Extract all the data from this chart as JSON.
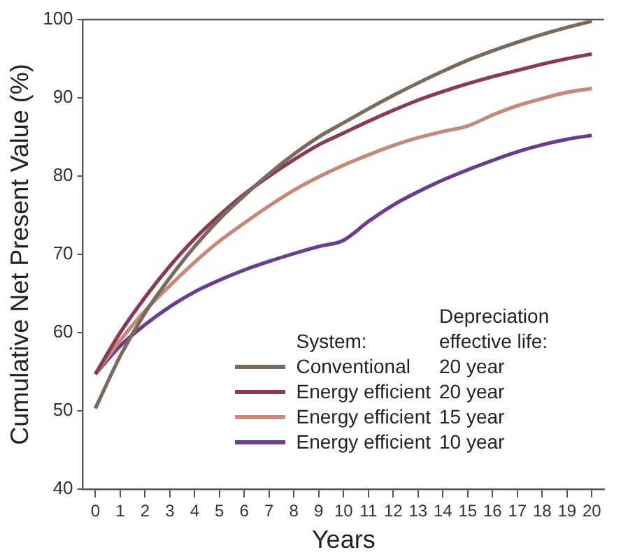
{
  "chart_data": {
    "type": "line",
    "xlabel": "Years",
    "ylabel": "Cumulative Net Present Value (%)",
    "legend_title": "System:",
    "legend": "bottom right",
    "grid": false,
    "marker": "none",
    "line_style": "solid",
    "x": [
      0,
      1,
      2,
      3,
      4,
      5,
      6,
      7,
      8,
      9,
      10,
      11,
      12,
      13,
      14,
      15,
      16,
      17,
      18,
      19,
      20
    ],
    "xlim": [
      -0.5,
      20.5
    ],
    "xticks": [
      0,
      1,
      2,
      3,
      4,
      5,
      6,
      7,
      8,
      9,
      10,
      11,
      12,
      13,
      14,
      15,
      16,
      17,
      18,
      19,
      20
    ],
    "ylim": [
      40,
      100
    ],
    "yticks": [
      40,
      50,
      60,
      70,
      80,
      90,
      100
    ],
    "annotations": [
      "Depreciation effective life:",
      "20 year",
      "20 year",
      "15 year",
      "10 year"
    ],
    "series": [
      {
        "name": "Conventional",
        "color": "#7a6a5e",
        "values": [
          50.3,
          57,
          62.5,
          67,
          71,
          74.5,
          77.5,
          80.3,
          82.8,
          85,
          86.8,
          88.6,
          90.3,
          91.9,
          93.4,
          94.8,
          96,
          97.1,
          98.1,
          99,
          99.8
        ]
      },
      {
        "name": "Energy efficient",
        "color": "#8b3a55",
        "values": [
          54.7,
          60,
          64.5,
          68.5,
          72,
          75,
          77.7,
          80,
          82.1,
          84,
          85.5,
          87,
          88.4,
          89.7,
          90.8,
          91.8,
          92.7,
          93.5,
          94.3,
          95,
          95.6
        ]
      },
      {
        "name": "Energy efficient",
        "color": "#c4897a",
        "values": [
          54.7,
          59,
          62.8,
          66,
          69,
          71.7,
          74,
          76.2,
          78.2,
          79.9,
          81.4,
          82.7,
          83.9,
          84.9,
          85.7,
          86.4,
          87.8,
          89,
          89.9,
          90.7,
          91.2
        ]
      },
      {
        "name": "Energy efficient",
        "color": "#6b3d8f",
        "values": [
          54.7,
          58.3,
          61,
          63.3,
          65.2,
          66.7,
          68,
          69.1,
          70.1,
          71,
          71.8,
          74.2,
          76.3,
          78,
          79.5,
          80.8,
          82,
          83.1,
          84,
          84.7,
          85.2
        ]
      }
    ]
  }
}
